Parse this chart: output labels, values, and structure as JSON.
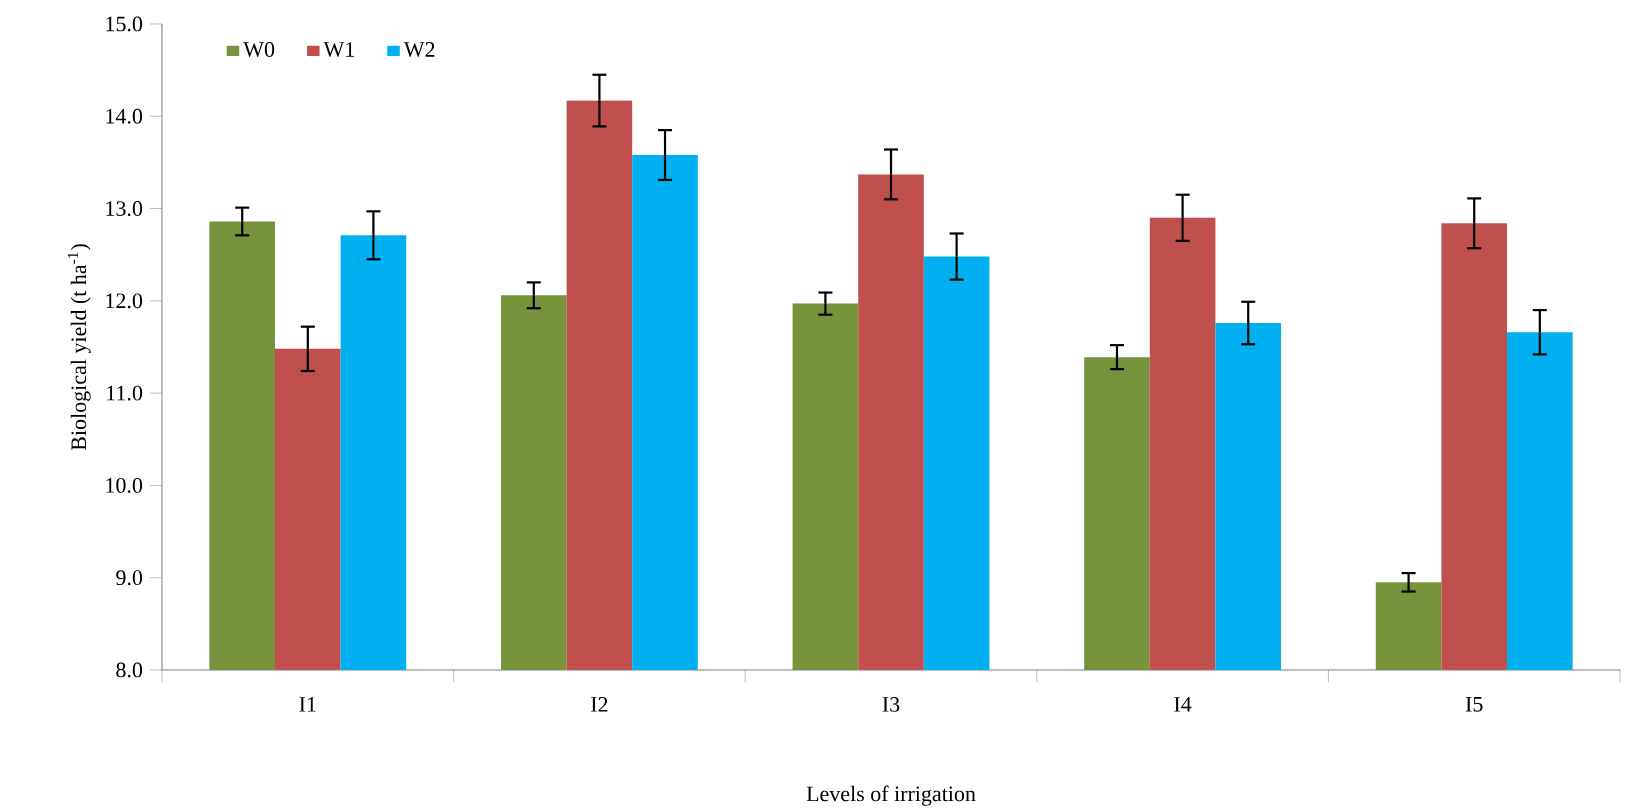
{
  "chart_data": {
    "type": "bar",
    "xlabel": "Levels of  irrigation",
    "ylabel": "Biological yield (t ha$^{-1}$)",
    "categories": [
      "I1",
      "I2",
      "I3",
      "I4",
      "I5"
    ],
    "series": [
      {
        "name": "W0",
        "color": "#77933c",
        "values": [
          12.86,
          12.06,
          11.97,
          11.39,
          8.95
        ],
        "errors": [
          0.15,
          0.14,
          0.12,
          0.13,
          0.1
        ]
      },
      {
        "name": "W1",
        "color": "#c0504d",
        "values": [
          11.48,
          14.17,
          13.37,
          12.9,
          12.84
        ],
        "errors": [
          0.24,
          0.28,
          0.27,
          0.25,
          0.27
        ]
      },
      {
        "name": "W2",
        "color": "#00b0f0",
        "values": [
          12.71,
          13.58,
          12.48,
          11.76,
          11.66
        ],
        "errors": [
          0.26,
          0.27,
          0.25,
          0.23,
          0.24
        ]
      }
    ],
    "ylim": [
      8,
      15
    ],
    "yticks": [
      {
        "value": 8,
        "label": "8.0"
      },
      {
        "value": 9,
        "label": "9.0"
      },
      {
        "value": 10,
        "label": "10.0"
      },
      {
        "value": 11,
        "label": "11.0"
      },
      {
        "value": 12,
        "label": "12.0"
      },
      {
        "value": 13,
        "label": "13.0"
      },
      {
        "value": 14,
        "label": "14.0"
      },
      {
        "value": 15,
        "label": "15.0"
      }
    ],
    "grid": false,
    "legend": "top left"
  }
}
